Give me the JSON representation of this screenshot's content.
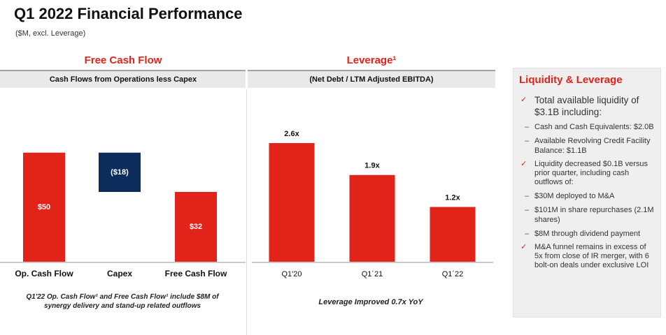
{
  "header": {
    "title": "Q1 2022 Financial Performance",
    "subtitle": "($M, excl. Leverage)"
  },
  "chart_data": [
    {
      "type": "waterfall",
      "title": "Free Cash Flow",
      "subtitle": "Cash Flows from Operations less Capex",
      "categories": [
        "Op. Cash Flow",
        "Capex",
        "Free Cash Flow"
      ],
      "values": [
        50,
        -18,
        32
      ],
      "value_labels": [
        "$50",
        "($18)",
        "$32"
      ],
      "color": "#e2231a",
      "negative_color": "#0c2c5c",
      "note": "Q1'22 Op. Cash Flow¹ and Free Cash Flow¹ include $8M of synergy delivery and stand-up related outflows"
    },
    {
      "type": "bar",
      "title": "Leverage¹",
      "subtitle": "(Net Debt / LTM Adjusted EBITDA)",
      "categories": [
        "Q1'20",
        "Q1´21",
        "Q1´22"
      ],
      "values": [
        2.6,
        1.9,
        1.2
      ],
      "value_labels": [
        "2.6x",
        "1.9x",
        "1.2x"
      ],
      "color": "#e2231a",
      "note": "Leverage Improved 0.7x YoY"
    }
  ],
  "sidebar": {
    "title": "Liquidity & Leverage",
    "items": [
      {
        "text": "Total available liquidity of $3.1B including:",
        "subitems": [
          "Cash and Cash Equivalents: $2.0B",
          "Available Revolving Credit Facility Balance: $1.1B"
        ]
      },
      {
        "text": "Liquidity decreased $0.1B versus prior quarter, including cash outflows of:",
        "subitems": [
          "$30M deployed to M&A",
          "$101M in share repurchases (2.1M shares)",
          "$8M through dividend payment"
        ]
      },
      {
        "text": "M&A funnel remains in excess of 5x from close of IR merger, with 6 bolt-on deals under exclusive LOI"
      }
    ]
  }
}
